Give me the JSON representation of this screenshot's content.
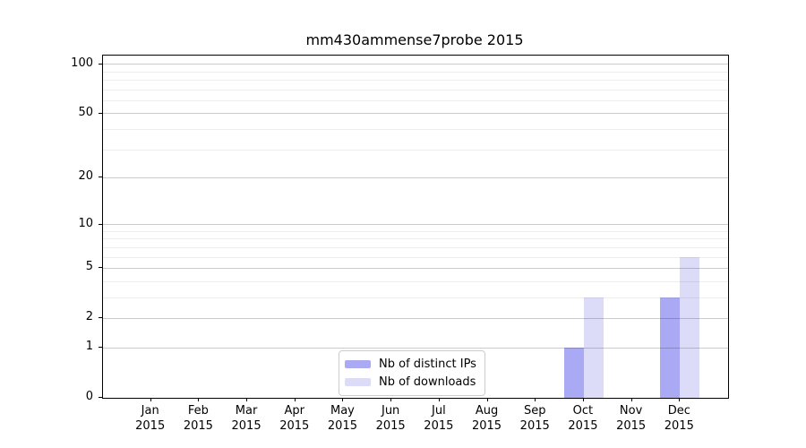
{
  "title": "mm430ammense7probe 2015",
  "chart_data": {
    "type": "bar",
    "categories": [
      "Jan",
      "Feb",
      "Mar",
      "Apr",
      "May",
      "Jun",
      "Jul",
      "Aug",
      "Sep",
      "Oct",
      "Nov",
      "Dec"
    ],
    "year": "2015",
    "series": [
      {
        "name": "Nb of distinct IPs",
        "color": "#a9a9f4",
        "values": [
          0,
          0,
          0,
          0,
          0,
          0,
          0,
          0,
          0,
          1,
          0,
          3
        ]
      },
      {
        "name": "Nb of downloads",
        "color": "#dcdcf8",
        "values": [
          0,
          0,
          0,
          0,
          0,
          0,
          0,
          0,
          0,
          3,
          0,
          6
        ]
      }
    ],
    "xlabel": "",
    "ylabel": "",
    "yscale": "log10(1+x)",
    "yticks": [
      0,
      1,
      2,
      5,
      10,
      20,
      50,
      100
    ],
    "minor_yticks": [
      3,
      4,
      6,
      7,
      8,
      9,
      30,
      40,
      60,
      70,
      80,
      90
    ],
    "ylim": [
      0,
      113
    ],
    "grid": "both",
    "legend_position": "lower center",
    "colors": {
      "major_grid": "rgba(0,0,0,0.20)",
      "minor_grid": "rgba(0,0,0,0.07)",
      "spine": "#000000",
      "text": "#000000"
    }
  }
}
